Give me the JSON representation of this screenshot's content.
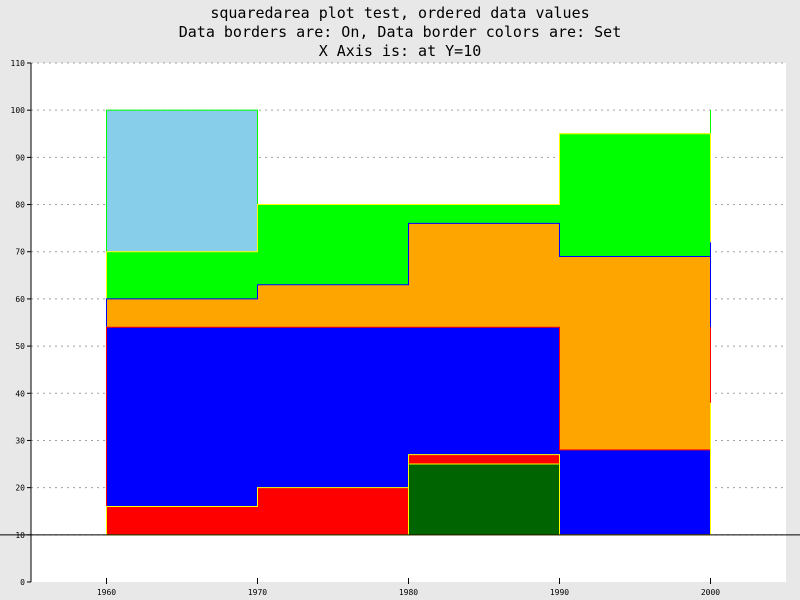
{
  "chart_data": {
    "type": "area",
    "variant": "squared-stacked",
    "title_lines": [
      "squaredarea plot test, ordered data values",
      "Data borders are: On, Data border colors are: Set",
      "X Axis is: at Y=10"
    ],
    "xlabel": "",
    "ylabel": "",
    "x": [
      1960,
      1970,
      1980,
      1990,
      2000
    ],
    "x_tick_labels": [
      "1960",
      "1970",
      "1980",
      "1990",
      "2000"
    ],
    "xlim": [
      1955,
      2005
    ],
    "ylim": [
      0,
      110
    ],
    "y_ticks": [
      0,
      10,
      20,
      30,
      40,
      50,
      60,
      70,
      80,
      90,
      100,
      110
    ],
    "y_tick_labels": [
      "0",
      "10",
      "20",
      "30",
      "40",
      "50",
      "60",
      "70",
      "80",
      "90",
      "100",
      "110"
    ],
    "x_axis_at_y": 10,
    "grid": "horizontal-dashed",
    "legend": "none",
    "series": [
      {
        "values": [
          100,
          80,
          80,
          95,
          100
        ],
        "color": "#87ceeb",
        "border": "#00ff00"
      },
      {
        "values": [
          70,
          80,
          80,
          95,
          95
        ],
        "color": "#00ff00",
        "border": "#ffff00"
      },
      {
        "values": [
          60,
          63,
          76,
          69,
          72
        ],
        "color": "#ffa500",
        "border": "#0000ff"
      },
      {
        "values": [
          54,
          54,
          54,
          28,
          54
        ],
        "color": "#0000ff",
        "border": "#ff0000"
      },
      {
        "values": [
          16,
          20,
          27,
          10,
          38
        ],
        "color": "#ff0000",
        "border": "#ffff00"
      },
      {
        "values": [
          10,
          10,
          25,
          10,
          10
        ],
        "color": "#006400",
        "border": "#ffff00"
      }
    ]
  }
}
